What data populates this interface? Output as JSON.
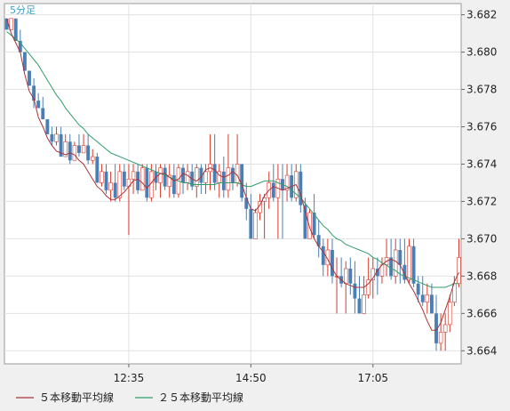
{
  "chart_data": {
    "type": "candlestick",
    "title": "5分足",
    "x_tick_labels": [
      "12:35",
      "14:50",
      "17:05"
    ],
    "y_ticks": [
      "3.682",
      "3.680",
      "3.678",
      "3.676",
      "3.674",
      "3.672",
      "3.670",
      "3.668",
      "3.666",
      "3.664"
    ],
    "ylim": [
      3.6633,
      3.6826
    ],
    "bar_count": 101,
    "x_tick_indices": [
      27,
      54,
      81
    ],
    "grid": true,
    "legend_position": "bottom-left",
    "colors": {
      "up": "#d93a2b",
      "down": "#4a7fb5",
      "ma5": "#a8323a",
      "ma25": "#2e9e6a",
      "label": "#3fa0c8"
    },
    "series": [
      {
        "name": "５本移動平均線",
        "values": [
          3.6818,
          3.681,
          3.6805,
          3.68,
          3.6788,
          3.6779,
          3.6775,
          3.6765,
          3.676,
          3.6754,
          3.675,
          3.6747,
          3.6746,
          3.6745,
          3.6746,
          3.6745,
          3.6742,
          3.674,
          3.6736,
          3.6732,
          3.6728,
          3.6726,
          3.6723,
          3.6721,
          3.6721,
          3.6723,
          3.6725,
          3.6728,
          3.6731,
          3.6732,
          3.673,
          3.6727,
          3.673,
          3.6733,
          3.6735,
          3.6735,
          3.6733,
          3.6731,
          3.6732,
          3.6735,
          3.6734,
          3.6732,
          3.6731,
          3.6733,
          3.6737,
          3.6738,
          3.6737,
          3.6734,
          3.6733,
          3.6734,
          3.6736,
          3.6734,
          3.6729,
          3.6722,
          3.6716,
          3.6715,
          3.6718,
          3.6723,
          3.6726,
          3.6728,
          3.6727,
          3.6726,
          3.6727,
          3.6728,
          3.6729,
          3.6724,
          3.6715,
          3.6706,
          3.67,
          3.6696,
          3.6693,
          3.6689,
          3.6684,
          3.668,
          3.6678,
          3.6676,
          3.6675,
          3.6674,
          3.6674,
          3.6674,
          3.6676,
          3.6679,
          3.6683,
          3.6686,
          3.6688,
          3.6689,
          3.6688,
          3.6686,
          3.6681,
          3.6676,
          3.6672,
          3.6667,
          3.6662,
          3.6656,
          3.6651,
          3.6651,
          3.6655,
          3.6662,
          3.6669,
          3.6677,
          3.6682
        ]
      },
      {
        "name": "２５本移動平均線",
        "values": [
          3.6811,
          3.6809,
          3.6807,
          3.6805,
          3.6802,
          3.6799,
          3.6796,
          3.6793,
          3.6789,
          3.6785,
          3.6781,
          3.6777,
          3.6774,
          3.677,
          3.6767,
          3.6764,
          3.6761,
          3.6759,
          3.6756,
          3.6754,
          3.6752,
          3.675,
          3.6748,
          3.6746,
          3.6745,
          3.6744,
          3.6743,
          3.6742,
          3.6741,
          3.674,
          3.6739,
          3.6738,
          3.6737,
          3.6736,
          3.6735,
          3.6734,
          3.6733,
          3.6732,
          3.6731,
          3.673,
          3.673,
          3.6729,
          3.6729,
          3.6729,
          3.6729,
          3.6729,
          3.6729,
          3.673,
          3.673,
          3.673,
          3.673,
          3.673,
          3.6729,
          3.6728,
          3.6728,
          3.6729,
          3.673,
          3.6731,
          3.6731,
          3.6731,
          3.673,
          3.6729,
          3.6728,
          3.6726,
          3.6724,
          3.6722,
          3.6719,
          3.6716,
          3.6713,
          3.671,
          3.6707,
          3.6705,
          3.6702,
          3.67,
          3.6699,
          3.6697,
          3.6696,
          3.6695,
          3.6694,
          3.6693,
          3.6692,
          3.669,
          3.6689,
          3.6687,
          3.6686,
          3.6684,
          3.6683,
          3.6681,
          3.668,
          3.6679,
          3.6678,
          3.6677,
          3.6676,
          3.6675,
          3.6674,
          3.6674,
          3.6674,
          3.6674,
          3.6675,
          3.6676,
          3.6676
        ]
      }
    ],
    "candles": [
      {
        "o": 3.6818,
        "h": 3.6818,
        "l": 3.6812,
        "c": 3.6812
      },
      {
        "o": 3.6812,
        "h": 3.6818,
        "l": 3.6812,
        "c": 3.6818
      },
      {
        "o": 3.6818,
        "h": 3.6818,
        "l": 3.6806,
        "c": 3.6806
      },
      {
        "o": 3.6806,
        "h": 3.6812,
        "l": 3.68,
        "c": 3.68
      },
      {
        "o": 3.68,
        "h": 3.68,
        "l": 3.679,
        "c": 3.679
      },
      {
        "o": 3.679,
        "h": 3.679,
        "l": 3.6782,
        "c": 3.6782
      },
      {
        "o": 3.6782,
        "h": 3.6786,
        "l": 3.677,
        "c": 3.6774
      },
      {
        "o": 3.6774,
        "h": 3.6778,
        "l": 3.677,
        "c": 3.677
      },
      {
        "o": 3.677,
        "h": 3.6776,
        "l": 3.6764,
        "c": 3.6764
      },
      {
        "o": 3.6764,
        "h": 3.6764,
        "l": 3.6756,
        "c": 3.6756
      },
      {
        "o": 3.6756,
        "h": 3.676,
        "l": 3.675,
        "c": 3.6752
      },
      {
        "o": 3.6752,
        "h": 3.676,
        "l": 3.675,
        "c": 3.6756
      },
      {
        "o": 3.6756,
        "h": 3.676,
        "l": 3.6744,
        "c": 3.6744
      },
      {
        "o": 3.6744,
        "h": 3.6756,
        "l": 3.6744,
        "c": 3.6752
      },
      {
        "o": 3.6752,
        "h": 3.6756,
        "l": 3.674,
        "c": 3.6742
      },
      {
        "o": 3.6742,
        "h": 3.6752,
        "l": 3.6742,
        "c": 3.675
      },
      {
        "o": 3.675,
        "h": 3.6756,
        "l": 3.6744,
        "c": 3.6746
      },
      {
        "o": 3.6746,
        "h": 3.6756,
        "l": 3.6746,
        "c": 3.675
      },
      {
        "o": 3.675,
        "h": 3.6756,
        "l": 3.674,
        "c": 3.6742
      },
      {
        "o": 3.6742,
        "h": 3.6748,
        "l": 3.674,
        "c": 3.6744
      },
      {
        "o": 3.6744,
        "h": 3.6746,
        "l": 3.673,
        "c": 3.673
      },
      {
        "o": 3.673,
        "h": 3.674,
        "l": 3.6728,
        "c": 3.6736
      },
      {
        "o": 3.6736,
        "h": 3.674,
        "l": 3.6724,
        "c": 3.6726
      },
      {
        "o": 3.6726,
        "h": 3.6736,
        "l": 3.672,
        "c": 3.673
      },
      {
        "o": 3.673,
        "h": 3.674,
        "l": 3.672,
        "c": 3.6722
      },
      {
        "o": 3.6722,
        "h": 3.674,
        "l": 3.672,
        "c": 3.6736
      },
      {
        "o": 3.6736,
        "h": 3.674,
        "l": 3.6726,
        "c": 3.6728
      },
      {
        "o": 3.6728,
        "h": 3.674,
        "l": 3.6702,
        "c": 3.6732
      },
      {
        "o": 3.6732,
        "h": 3.674,
        "l": 3.6724,
        "c": 3.6736
      },
      {
        "o": 3.6736,
        "h": 3.674,
        "l": 3.6724,
        "c": 3.6726
      },
      {
        "o": 3.6726,
        "h": 3.674,
        "l": 3.6726,
        "c": 3.6738
      },
      {
        "o": 3.6738,
        "h": 3.674,
        "l": 3.672,
        "c": 3.6722
      },
      {
        "o": 3.6722,
        "h": 3.674,
        "l": 3.672,
        "c": 3.6736
      },
      {
        "o": 3.6736,
        "h": 3.674,
        "l": 3.6726,
        "c": 3.673
      },
      {
        "o": 3.673,
        "h": 3.674,
        "l": 3.6722,
        "c": 3.6738
      },
      {
        "o": 3.6738,
        "h": 3.674,
        "l": 3.6726,
        "c": 3.6728
      },
      {
        "o": 3.6728,
        "h": 3.674,
        "l": 3.6722,
        "c": 3.6734
      },
      {
        "o": 3.6734,
        "h": 3.674,
        "l": 3.6722,
        "c": 3.6724
      },
      {
        "o": 3.6724,
        "h": 3.674,
        "l": 3.6722,
        "c": 3.6738
      },
      {
        "o": 3.6738,
        "h": 3.674,
        "l": 3.6724,
        "c": 3.673
      },
      {
        "o": 3.673,
        "h": 3.674,
        "l": 3.6726,
        "c": 3.6736
      },
      {
        "o": 3.6736,
        "h": 3.674,
        "l": 3.6726,
        "c": 3.6728
      },
      {
        "o": 3.6728,
        "h": 3.674,
        "l": 3.6722,
        "c": 3.6738
      },
      {
        "o": 3.6738,
        "h": 3.674,
        "l": 3.6724,
        "c": 3.673
      },
      {
        "o": 3.673,
        "h": 3.674,
        "l": 3.6724,
        "c": 3.6736
      },
      {
        "o": 3.6736,
        "h": 3.6756,
        "l": 3.6726,
        "c": 3.674
      },
      {
        "o": 3.674,
        "h": 3.6756,
        "l": 3.6726,
        "c": 3.673
      },
      {
        "o": 3.673,
        "h": 3.674,
        "l": 3.6722,
        "c": 3.6736
      },
      {
        "o": 3.6736,
        "h": 3.6744,
        "l": 3.6722,
        "c": 3.6726
      },
      {
        "o": 3.6726,
        "h": 3.6756,
        "l": 3.6722,
        "c": 3.6738
      },
      {
        "o": 3.6738,
        "h": 3.674,
        "l": 3.6726,
        "c": 3.673
      },
      {
        "o": 3.673,
        "h": 3.6756,
        "l": 3.6728,
        "c": 3.674
      },
      {
        "o": 3.674,
        "h": 3.674,
        "l": 3.672,
        "c": 3.6722
      },
      {
        "o": 3.6722,
        "h": 3.673,
        "l": 3.671,
        "c": 3.6716
      },
      {
        "o": 3.6716,
        "h": 3.6724,
        "l": 3.67,
        "c": 3.67
      },
      {
        "o": 3.67,
        "h": 3.6716,
        "l": 3.67,
        "c": 3.6714
      },
      {
        "o": 3.6714,
        "h": 3.6724,
        "l": 3.671,
        "c": 3.672
      },
      {
        "o": 3.672,
        "h": 3.6724,
        "l": 3.67,
        "c": 3.6722
      },
      {
        "o": 3.6722,
        "h": 3.6736,
        "l": 3.6716,
        "c": 3.673
      },
      {
        "o": 3.673,
        "h": 3.674,
        "l": 3.672,
        "c": 3.6722
      },
      {
        "o": 3.6722,
        "h": 3.674,
        "l": 3.67,
        "c": 3.6732
      },
      {
        "o": 3.6732,
        "h": 3.674,
        "l": 3.67,
        "c": 3.6726
      },
      {
        "o": 3.6726,
        "h": 3.674,
        "l": 3.672,
        "c": 3.6734
      },
      {
        "o": 3.6734,
        "h": 3.674,
        "l": 3.672,
        "c": 3.6722
      },
      {
        "o": 3.6722,
        "h": 3.674,
        "l": 3.672,
        "c": 3.6736
      },
      {
        "o": 3.6736,
        "h": 3.674,
        "l": 3.6714,
        "c": 3.6718
      },
      {
        "o": 3.6718,
        "h": 3.6722,
        "l": 3.67,
        "c": 3.67
      },
      {
        "o": 3.67,
        "h": 3.6716,
        "l": 3.67,
        "c": 3.6714
      },
      {
        "o": 3.6714,
        "h": 3.6724,
        "l": 3.67,
        "c": 3.6702
      },
      {
        "o": 3.6702,
        "h": 3.671,
        "l": 3.669,
        "c": 3.6696
      },
      {
        "o": 3.6696,
        "h": 3.67,
        "l": 3.668,
        "c": 3.6686
      },
      {
        "o": 3.6686,
        "h": 3.67,
        "l": 3.668,
        "c": 3.6694
      },
      {
        "o": 3.6694,
        "h": 3.67,
        "l": 3.6676,
        "c": 3.668
      },
      {
        "o": 3.668,
        "h": 3.669,
        "l": 3.666,
        "c": 3.668
      },
      {
        "o": 3.668,
        "h": 3.669,
        "l": 3.6674,
        "c": 3.6676
      },
      {
        "o": 3.6676,
        "h": 3.6688,
        "l": 3.666,
        "c": 3.6684
      },
      {
        "o": 3.6684,
        "h": 3.669,
        "l": 3.667,
        "c": 3.6676
      },
      {
        "o": 3.6676,
        "h": 3.6688,
        "l": 3.666,
        "c": 3.6668
      },
      {
        "o": 3.6668,
        "h": 3.668,
        "l": 3.666,
        "c": 3.666
      },
      {
        "o": 3.666,
        "h": 3.668,
        "l": 3.666,
        "c": 3.667
      },
      {
        "o": 3.667,
        "h": 3.669,
        "l": 3.6668,
        "c": 3.6678
      },
      {
        "o": 3.6678,
        "h": 3.669,
        "l": 3.6668,
        "c": 3.6684
      },
      {
        "o": 3.6684,
        "h": 3.669,
        "l": 3.667,
        "c": 3.668
      },
      {
        "o": 3.668,
        "h": 3.669,
        "l": 3.6676,
        "c": 3.6686
      },
      {
        "o": 3.6686,
        "h": 3.67,
        "l": 3.668,
        "c": 3.669
      },
      {
        "o": 3.669,
        "h": 3.67,
        "l": 3.6678,
        "c": 3.668
      },
      {
        "o": 3.668,
        "h": 3.67,
        "l": 3.6676,
        "c": 3.6694
      },
      {
        "o": 3.6694,
        "h": 3.67,
        "l": 3.6676,
        "c": 3.6686
      },
      {
        "o": 3.6686,
        "h": 3.67,
        "l": 3.6676,
        "c": 3.6678
      },
      {
        "o": 3.6678,
        "h": 3.67,
        "l": 3.6676,
        "c": 3.6696
      },
      {
        "o": 3.6696,
        "h": 3.67,
        "l": 3.6674,
        "c": 3.6676
      },
      {
        "o": 3.6676,
        "h": 3.668,
        "l": 3.6666,
        "c": 3.667
      },
      {
        "o": 3.667,
        "h": 3.668,
        "l": 3.6664,
        "c": 3.6666
      },
      {
        "o": 3.6666,
        "h": 3.6676,
        "l": 3.666,
        "c": 3.667
      },
      {
        "o": 3.667,
        "h": 3.6676,
        "l": 3.666,
        "c": 3.666
      },
      {
        "o": 3.666,
        "h": 3.667,
        "l": 3.664,
        "c": 3.6644
      },
      {
        "o": 3.6644,
        "h": 3.666,
        "l": 3.664,
        "c": 3.665
      },
      {
        "o": 3.665,
        "h": 3.666,
        "l": 3.664,
        "c": 3.6654
      },
      {
        "o": 3.6654,
        "h": 3.667,
        "l": 3.665,
        "c": 3.6666
      },
      {
        "o": 3.6666,
        "h": 3.668,
        "l": 3.6664,
        "c": 3.6676
      },
      {
        "o": 3.6676,
        "h": 3.67,
        "l": 3.6674,
        "c": 3.669
      }
    ]
  }
}
